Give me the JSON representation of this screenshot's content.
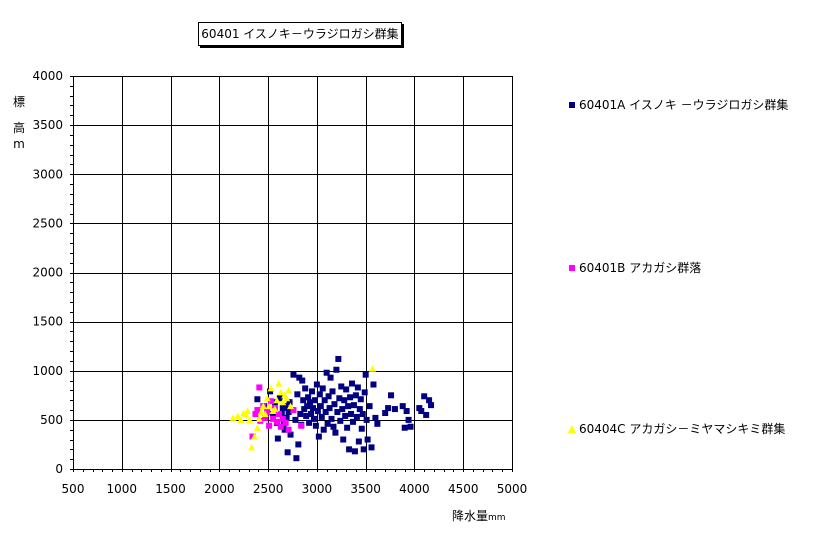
{
  "chart_data": {
    "type": "scatter",
    "title": "60401 イスノキ－ウラジロガシ群集",
    "xlabel": "降水量",
    "xlabel_unit": "mm",
    "ylabel_chars": [
      "標",
      "高",
      "m"
    ],
    "xlim": [
      500,
      5000
    ],
    "ylim": [
      0,
      4000
    ],
    "xticks": [
      500,
      1000,
      1500,
      2000,
      2500,
      3000,
      3500,
      4000,
      4500,
      5000
    ],
    "yticks": [
      0,
      500,
      1000,
      1500,
      2000,
      2500,
      3000,
      3500,
      4000
    ],
    "grid": true,
    "legend_position": "right",
    "series": [
      {
        "name": "60401A イスノキ －ウラジロガシ群集",
        "color": "#000080",
        "marker": "square",
        "points": [
          [
            2390,
            710
          ],
          [
            2460,
            640
          ],
          [
            2520,
            790
          ],
          [
            2550,
            560
          ],
          [
            2570,
            680
          ],
          [
            2590,
            470
          ],
          [
            2600,
            310
          ],
          [
            2620,
            720
          ],
          [
            2640,
            560
          ],
          [
            2650,
            620
          ],
          [
            2660,
            460
          ],
          [
            2670,
            400
          ],
          [
            2680,
            640
          ],
          [
            2690,
            520
          ],
          [
            2700,
            170
          ],
          [
            2710,
            580
          ],
          [
            2720,
            680
          ],
          [
            2730,
            350
          ],
          [
            2740,
            600
          ],
          [
            2760,
            960
          ],
          [
            2780,
            500
          ],
          [
            2790,
            110
          ],
          [
            2800,
            760
          ],
          [
            2810,
            250
          ],
          [
            2820,
            930
          ],
          [
            2830,
            560
          ],
          [
            2840,
            450
          ],
          [
            2850,
            900
          ],
          [
            2860,
            700
          ],
          [
            2870,
            610
          ],
          [
            2880,
            820
          ],
          [
            2890,
            540
          ],
          [
            2900,
            640
          ],
          [
            2910,
            730
          ],
          [
            2920,
            470
          ],
          [
            2930,
            680
          ],
          [
            2940,
            560
          ],
          [
            2950,
            790
          ],
          [
            2960,
            620
          ],
          [
            2970,
            510
          ],
          [
            2980,
            700
          ],
          [
            2990,
            440
          ],
          [
            3000,
            860
          ],
          [
            3010,
            590
          ],
          [
            3020,
            330
          ],
          [
            3030,
            760
          ],
          [
            3040,
            640
          ],
          [
            3050,
            530
          ],
          [
            3060,
            820
          ],
          [
            3070,
            400
          ],
          [
            3080,
            700
          ],
          [
            3090,
            580
          ],
          [
            3100,
            980
          ],
          [
            3110,
            460
          ],
          [
            3120,
            740
          ],
          [
            3130,
            620
          ],
          [
            3140,
            930
          ],
          [
            3150,
            510
          ],
          [
            3160,
            790
          ],
          [
            3170,
            430
          ],
          [
            3180,
            660
          ],
          [
            3190,
            370
          ],
          [
            3200,
            1010
          ],
          [
            3210,
            580
          ],
          [
            3220,
            1120
          ],
          [
            3230,
            720
          ],
          [
            3240,
            490
          ],
          [
            3250,
            840
          ],
          [
            3260,
            610
          ],
          [
            3270,
            300
          ],
          [
            3280,
            700
          ],
          [
            3290,
            540
          ],
          [
            3300,
            810
          ],
          [
            3310,
            420
          ],
          [
            3320,
            640
          ],
          [
            3330,
            200
          ],
          [
            3340,
            730
          ],
          [
            3350,
            560
          ],
          [
            3360,
            870
          ],
          [
            3370,
            480
          ],
          [
            3380,
            650
          ],
          [
            3390,
            180
          ],
          [
            3400,
            750
          ],
          [
            3410,
            530
          ],
          [
            3420,
            830
          ],
          [
            3430,
            280
          ],
          [
            3440,
            610
          ],
          [
            3450,
            710
          ],
          [
            3460,
            410
          ],
          [
            3470,
            560
          ],
          [
            3480,
            200
          ],
          [
            3490,
            780
          ],
          [
            3500,
            960
          ],
          [
            3510,
            500
          ],
          [
            3520,
            300
          ],
          [
            3540,
            640
          ],
          [
            3560,
            220
          ],
          [
            3580,
            860
          ],
          [
            3600,
            520
          ],
          [
            3620,
            460
          ],
          [
            3700,
            570
          ],
          [
            3730,
            620
          ],
          [
            3760,
            750
          ],
          [
            3800,
            610
          ],
          [
            3880,
            640
          ],
          [
            3900,
            420
          ],
          [
            3920,
            590
          ],
          [
            3940,
            500
          ],
          [
            3960,
            430
          ],
          [
            4050,
            620
          ],
          [
            4070,
            590
          ],
          [
            4100,
            740
          ],
          [
            4120,
            550
          ],
          [
            4150,
            700
          ],
          [
            4170,
            650
          ]
        ]
      },
      {
        "name": "60401B アカガシ群落",
        "color": "#ff00ff",
        "marker": "square",
        "points": [
          [
            2340,
            330
          ],
          [
            2370,
            560
          ],
          [
            2390,
            600
          ],
          [
            2410,
            830
          ],
          [
            2420,
            490
          ],
          [
            2450,
            640
          ],
          [
            2470,
            520
          ],
          [
            2490,
            580
          ],
          [
            2510,
            440
          ],
          [
            2530,
            690
          ],
          [
            2550,
            510
          ],
          [
            2570,
            620
          ],
          [
            2590,
            480
          ],
          [
            2610,
            560
          ],
          [
            2630,
            430
          ],
          [
            2650,
            510
          ],
          [
            2680,
            470
          ],
          [
            2710,
            400
          ],
          [
            2760,
            600
          ],
          [
            2840,
            440
          ]
        ]
      },
      {
        "name": "60404C アカガシ－ミヤマシキミ群集",
        "color": "#ffff00",
        "marker": "triangle",
        "points": [
          [
            2140,
            520
          ],
          [
            2190,
            540
          ],
          [
            2220,
            500
          ],
          [
            2250,
            570
          ],
          [
            2270,
            560
          ],
          [
            2290,
            590
          ],
          [
            2310,
            500
          ],
          [
            2330,
            220
          ],
          [
            2360,
            330
          ],
          [
            2390,
            420
          ],
          [
            2410,
            510
          ],
          [
            2430,
            580
          ],
          [
            2450,
            640
          ],
          [
            2470,
            560
          ],
          [
            2490,
            720
          ],
          [
            2510,
            640
          ],
          [
            2530,
            820
          ],
          [
            2550,
            590
          ],
          [
            2570,
            610
          ],
          [
            2590,
            700
          ],
          [
            2610,
            870
          ],
          [
            2630,
            780
          ],
          [
            2650,
            680
          ],
          [
            2670,
            750
          ],
          [
            2690,
            720
          ],
          [
            2710,
            800
          ],
          [
            2730,
            640
          ],
          [
            3570,
            1020
          ]
        ]
      }
    ]
  }
}
